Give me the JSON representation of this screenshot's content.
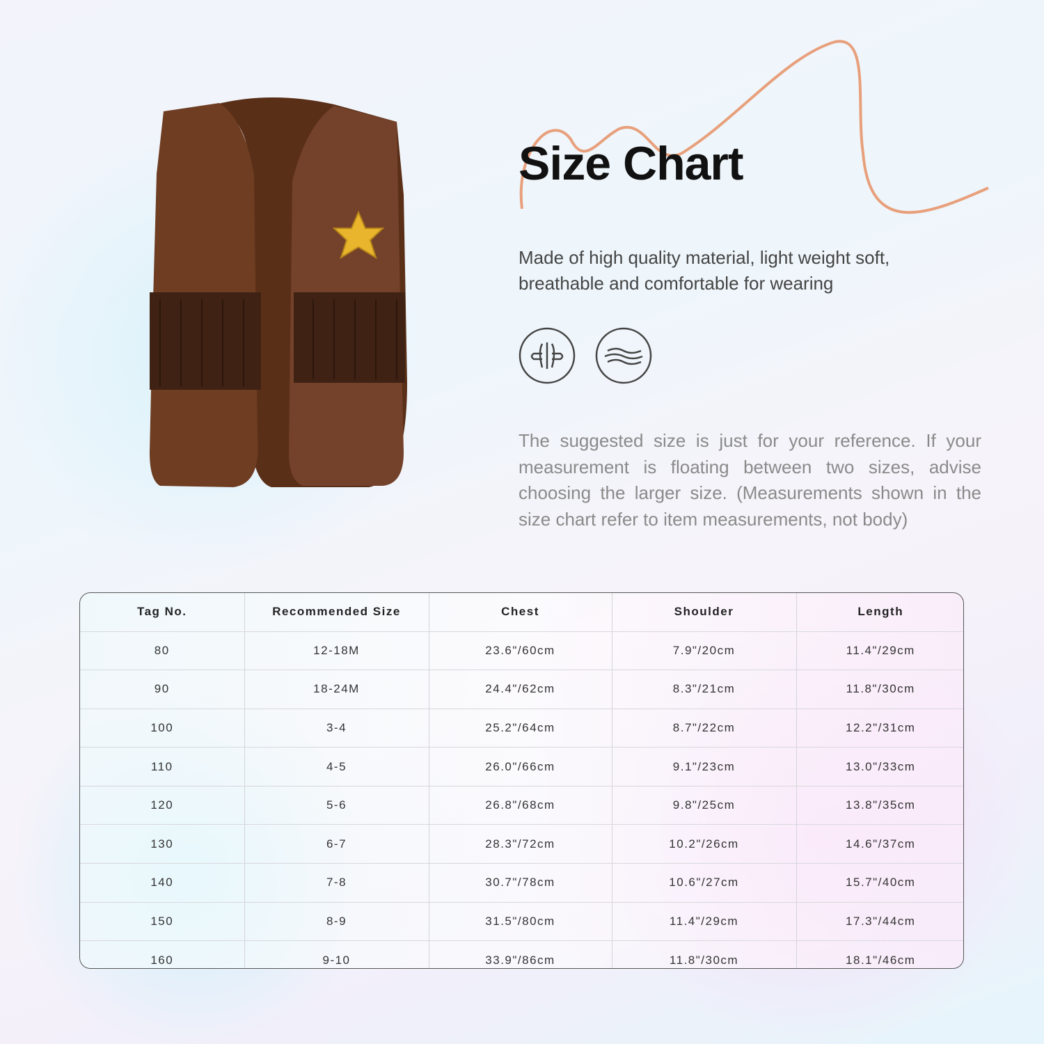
{
  "title": "Size Chart",
  "description": "Made of high quality material, light weight soft, breathable and comfortable for wearing",
  "features": [
    {
      "icon": "breathable-icon"
    },
    {
      "icon": "soft-wave-icon"
    }
  ],
  "note": "The suggested size is just for your reference. If your measurement is floating between two sizes, advise choosing the larger size. (Measurements shown in the size chart refer to item measurements, not body)",
  "colors": {
    "vest": "#6b3a1f",
    "fringe": "#3f2214",
    "badge": "#e8b52c",
    "accent_curve": "#e8a07c"
  },
  "table": {
    "headers": [
      "Tag No.",
      "Recommended Size",
      "Chest",
      "Shoulder",
      "Length"
    ],
    "rows": [
      [
        "80",
        "12-18M",
        "23.6\"/60cm",
        "7.9\"/20cm",
        "11.4\"/29cm"
      ],
      [
        "90",
        "18-24M",
        "24.4\"/62cm",
        "8.3\"/21cm",
        "11.8\"/30cm"
      ],
      [
        "100",
        "3-4",
        "25.2\"/64cm",
        "8.7\"/22cm",
        "12.2\"/31cm"
      ],
      [
        "110",
        "4-5",
        "26.0\"/66cm",
        "9.1\"/23cm",
        "13.0\"/33cm"
      ],
      [
        "120",
        "5-6",
        "26.8\"/68cm",
        "9.8\"/25cm",
        "13.8\"/35cm"
      ],
      [
        "130",
        "6-7",
        "28.3\"/72cm",
        "10.2\"/26cm",
        "14.6\"/37cm"
      ],
      [
        "140",
        "7-8",
        "30.7\"/78cm",
        "10.6\"/27cm",
        "15.7\"/40cm"
      ],
      [
        "150",
        "8-9",
        "31.5\"/80cm",
        "11.4\"/29cm",
        "17.3\"/44cm"
      ],
      [
        "160",
        "9-10",
        "33.9\"/86cm",
        "11.8\"/30cm",
        "18.1\"/46cm"
      ]
    ]
  }
}
